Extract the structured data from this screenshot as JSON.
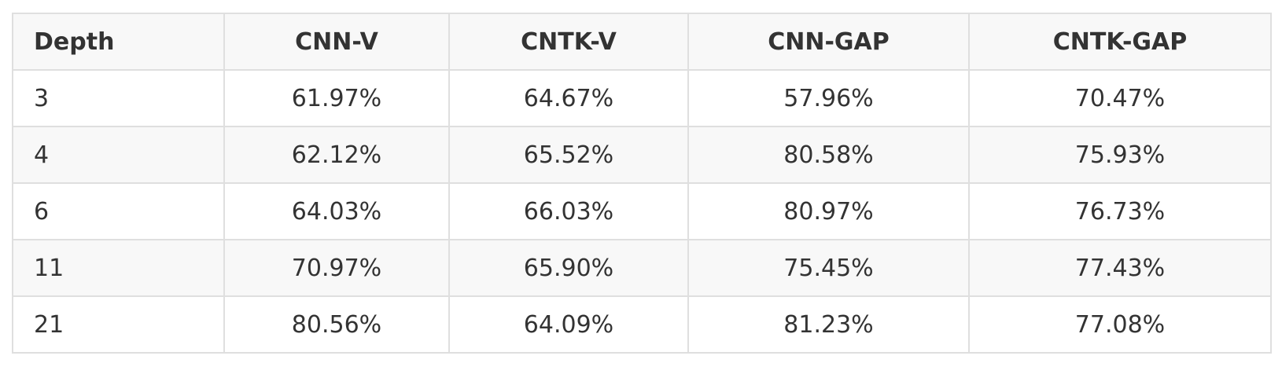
{
  "table": {
    "headers": [
      "Depth",
      "CNN-V",
      "CNTK-V",
      "CNN-GAP",
      "CNTK-GAP"
    ],
    "rows": [
      [
        "3",
        "61.97%",
        "64.67%",
        "57.96%",
        "70.47%"
      ],
      [
        "4",
        "62.12%",
        "65.52%",
        "80.58%",
        "75.93%"
      ],
      [
        "6",
        "64.03%",
        "66.03%",
        "80.97%",
        "76.73%"
      ],
      [
        "11",
        "70.97%",
        "65.90%",
        "75.45%",
        "77.43%"
      ],
      [
        "21",
        "80.56%",
        "64.09%",
        "81.23%",
        "77.08%"
      ]
    ]
  }
}
